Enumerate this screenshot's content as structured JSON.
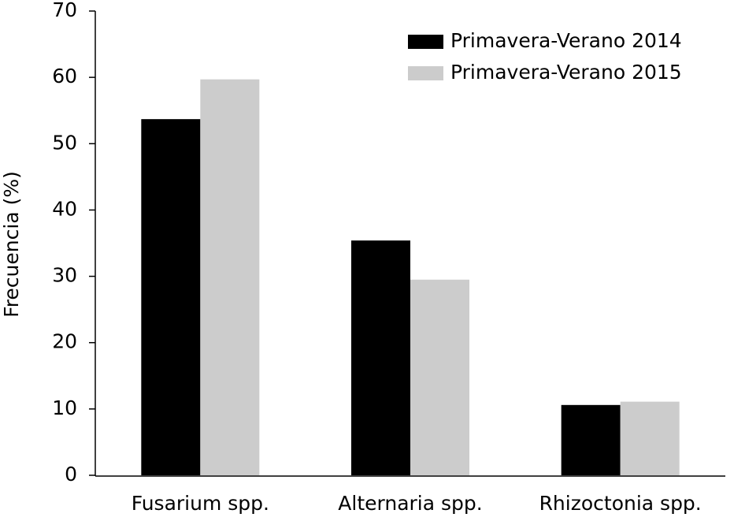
{
  "chart_data": {
    "type": "bar",
    "y_label": "Frecuencia (%)",
    "categories": [
      "Fusarium spp.",
      "Alternaria spp.",
      "Rhizoctonia spp."
    ],
    "series": [
      {
        "name": "Primavera-Verano 2014",
        "color": "#000000",
        "values": [
          53.7,
          35.4,
          10.6
        ]
      },
      {
        "name": "Primavera-Verano 2015",
        "color": "#cccccc",
        "values": [
          59.7,
          29.5,
          11.1
        ]
      }
    ],
    "ylim": [
      0,
      70
    ],
    "yticks": [
      0,
      10,
      20,
      30,
      40,
      50,
      60,
      70
    ],
    "grid": false,
    "legend": "upper-right"
  }
}
